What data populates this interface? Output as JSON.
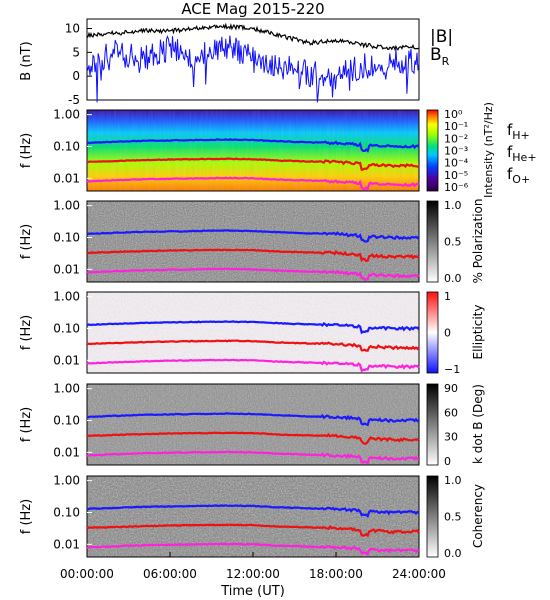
{
  "title": "ACE Mag 2015-220",
  "time_axis": {
    "label": "Time (UT)",
    "ticks": [
      "00:00:00",
      "06:00:00",
      "12:00:00",
      "18:00:00",
      "24:00:00"
    ],
    "range_hours": [
      0,
      24
    ]
  },
  "colors": {
    "B_total": "#000000",
    "B_R": "#1010ff",
    "f_H": "#1a1aff",
    "f_He": "#ee1111",
    "f_O": "#ff22dd"
  },
  "chart_data": [
    {
      "type": "line",
      "panel": "magnetic-field",
      "ylabel": "B (nT)",
      "ylim": [
        -5,
        12
      ],
      "yticks": [
        "10",
        "5",
        "0",
        "-5"
      ],
      "x_hours": [
        0,
        2,
        4,
        6,
        8,
        10,
        12,
        14,
        16,
        18,
        20,
        22,
        24
      ],
      "series": [
        {
          "name": "|B|",
          "values": [
            8.5,
            9,
            9.5,
            9.5,
            10,
            10.5,
            10,
            8.5,
            7,
            7.5,
            6.5,
            6,
            6
          ]
        },
        {
          "name": "B_R",
          "values": [
            2,
            5,
            3.5,
            6,
            4,
            6.5,
            3.5,
            2,
            0.5,
            0,
            2,
            3.5,
            3
          ]
        }
      ]
    },
    {
      "type": "heatmap",
      "panel": "power-spectrum",
      "ylabel": "f (Hz)",
      "yticks": [
        "1.00",
        "0.10",
        "0.01"
      ],
      "colorbar": {
        "label": "Intensity (nT²/Hz)",
        "ticks": [
          "10⁰",
          "10⁻¹",
          "10⁻²",
          "10⁻³",
          "10⁻⁴",
          "10⁻⁵",
          "10⁻⁶"
        ]
      }
    },
    {
      "type": "heatmap",
      "panel": "polarization",
      "ylabel": "f (Hz)",
      "yticks": [
        "1.00",
        "0.10",
        "0.01"
      ],
      "colorbar": {
        "label": "% Polarization",
        "ticks": [
          "1.0",
          "0.5",
          "0.0"
        ]
      }
    },
    {
      "type": "heatmap",
      "panel": "ellipticity",
      "ylabel": "f (Hz)",
      "yticks": [
        "1.00",
        "0.10",
        "0.01"
      ],
      "colorbar": {
        "label": "Ellipticity",
        "ticks": [
          "1",
          "0",
          "−1"
        ]
      }
    },
    {
      "type": "heatmap",
      "panel": "wave-normal-angle",
      "ylabel": "f (Hz)",
      "yticks": [
        "1.00",
        "0.10",
        "0.01"
      ],
      "colorbar": {
        "label": "k dot B (Deg)",
        "ticks": [
          "90",
          "60",
          "30",
          "0"
        ]
      }
    },
    {
      "type": "heatmap",
      "panel": "coherency",
      "ylabel": "f (Hz)",
      "yticks": [
        "1.00",
        "0.10",
        "0.01"
      ],
      "colorbar": {
        "label": "Coherency",
        "ticks": [
          "1.0",
          "0.5",
          "0.0"
        ]
      }
    }
  ],
  "gyrofrequencies": {
    "x_hours": [
      0,
      2,
      4,
      6,
      8,
      10,
      12,
      14,
      16,
      18,
      20,
      22,
      24
    ],
    "f_H": [
      0.13,
      0.14,
      0.15,
      0.155,
      0.16,
      0.165,
      0.16,
      0.145,
      0.135,
      0.13,
      0.11,
      0.1,
      0.1
    ],
    "f_He": [
      0.033,
      0.035,
      0.037,
      0.039,
      0.04,
      0.041,
      0.04,
      0.036,
      0.034,
      0.033,
      0.028,
      0.025,
      0.025
    ],
    "f_O": [
      0.008,
      0.0087,
      0.0093,
      0.0097,
      0.01,
      0.0103,
      0.01,
      0.009,
      0.0085,
      0.008,
      0.007,
      0.0063,
      0.0063
    ]
  },
  "labels": {
    "btotal": "|B|",
    "br_main": "B",
    "br_sub": "R",
    "fh_main": "f",
    "fh_sub": "H+",
    "fhe_main": "f",
    "fhe_sub": "He+",
    "fo_main": "f",
    "fo_sub": "O+"
  }
}
